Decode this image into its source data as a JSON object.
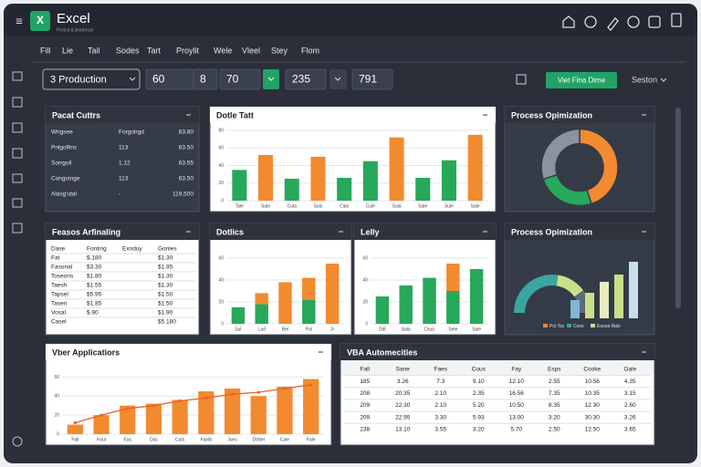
{
  "app": {
    "logo": "X",
    "title": "Excel",
    "subtitle": "Protcit & Andresat"
  },
  "menu": [
    "Fill",
    "Lie",
    "Tail",
    "Sodes",
    "Tart",
    "Proylit",
    "Wele",
    "Vleel",
    "Stey",
    "Flom"
  ],
  "toolbar": {
    "dropdown": "3 Production",
    "fields": [
      "60",
      "8",
      "70",
      "235",
      "791"
    ],
    "button": "Viet Fina Dime",
    "link": "Seston"
  },
  "tables": [
    {
      "title": "Pacat Cuttrs",
      "rows": [
        [
          "Wrigsee",
          "Forgolrgd",
          "63.80"
        ],
        [
          "Pnlgolfins",
          "113",
          "63.50"
        ],
        [
          "Sorrgoll",
          "1.12",
          "63.55"
        ],
        [
          "Congoinge",
          "113",
          "63.50"
        ],
        [
          "Alasg'utal",
          "-",
          "119,500"
        ]
      ]
    },
    {
      "title": "Feasos Arfinaling",
      "header": [
        "Dase",
        "Fonting",
        "Exnduy",
        "Gonles"
      ],
      "rows": [
        [
          "Fat",
          "$.180",
          null,
          "$1.30"
        ],
        [
          "Fasonal",
          "$3.30",
          null,
          "$1.95"
        ],
        [
          "Toseons",
          "$1.80",
          null,
          "$1.30"
        ],
        [
          "Taesh",
          "$1.55",
          null,
          "$1.30"
        ],
        [
          "Tapsel",
          "$5.95",
          null,
          "$1.50"
        ],
        [
          "Tasen",
          "$1.85",
          null,
          "$1.50"
        ],
        [
          "Vosal",
          "$.90",
          null,
          "$1.90"
        ],
        [
          "Casel",
          null,
          null,
          "$5.180"
        ]
      ]
    },
    {
      "title": "VBA Automecities",
      "header": [
        "Fall",
        "Sane",
        "Faes",
        "Cous",
        "Fay",
        "Esps",
        "Cooke",
        "Gale"
      ],
      "rows": [
        [
          "185",
          "3.26",
          "7.3",
          "9.10",
          "12.10",
          "2.55",
          "10.56",
          "4.35"
        ],
        [
          "208",
          "20.35",
          "2.10",
          "2.35",
          "16.56",
          "7.35",
          "10.35",
          "3.15"
        ],
        [
          "209",
          "22.30",
          "2.10",
          "5.20",
          "10.50",
          "8.35",
          "12.30",
          "2.60"
        ],
        [
          "209",
          "22.95",
          "3.30",
          "5.93",
          "13.00",
          "3.20",
          "30.30",
          "3.26"
        ],
        [
          "238",
          "13.10",
          "3.55",
          "3.20",
          "5.70",
          "2.50",
          "12.50",
          "3.65"
        ]
      ]
    }
  ],
  "chart_data": [
    {
      "type": "bar",
      "title": "Dotle Tatt",
      "categories": [
        "Tale",
        "Sulo",
        "Cula",
        "Suls",
        "Calo",
        "Cule",
        "Sula",
        "Sale",
        "Sule",
        "Sale"
      ],
      "values": [
        35,
        52,
        25,
        50,
        26,
        45,
        72,
        26,
        46,
        75
      ],
      "colors": [
        "#27a85a",
        "#f28a30",
        "#27a85a",
        "#f28a30",
        "#27a85a",
        "#27a85a",
        "#f28a30",
        "#27a85a",
        "#27a85a",
        "#f28a30"
      ],
      "ylim": [
        0,
        80
      ],
      "yticks": [
        0,
        20,
        40,
        60,
        80
      ]
    },
    {
      "type": "donut",
      "title": "Process Opimization",
      "values": [
        45,
        25,
        30
      ],
      "colors": [
        "#f28a30",
        "#27a85a",
        "#8a939f"
      ]
    },
    {
      "type": "bar",
      "title": "Dotlics",
      "categories": [
        "Sul",
        "Lad",
        "Bel",
        "Pal",
        "Jr"
      ],
      "series": [
        {
          "color": "#27a85a",
          "values": [
            15,
            18,
            null,
            22,
            null
          ]
        },
        {
          "color": "#f28a30",
          "values": [
            null,
            10,
            38,
            20,
            55
          ]
        }
      ],
      "ylim": [
        0,
        70
      ],
      "yticks": [
        0,
        20,
        40,
        60
      ]
    },
    {
      "type": "bar",
      "title": "Lelly",
      "categories": [
        "Ddt",
        "Sala",
        "Drua",
        "Sele",
        "Sale"
      ],
      "series": [
        {
          "color": "#27a85a",
          "values": [
            25,
            35,
            42,
            30,
            50
          ]
        },
        {
          "color": "#f28a30",
          "values": [
            null,
            null,
            null,
            25,
            null
          ]
        }
      ],
      "ylim": [
        0,
        70
      ],
      "yticks": [
        0,
        20,
        40,
        60
      ]
    },
    {
      "type": "radial",
      "title": "Process Opimization",
      "values": [
        55,
        25,
        20
      ],
      "colors": [
        "#3aa6a0",
        "#c8e08a",
        "#5f6b7a"
      ],
      "bars": [
        20,
        28,
        40,
        48,
        62
      ],
      "bar_colors": [
        "#7fb8d8",
        "#c8e08a",
        "#e8ecc0",
        "#c8e08a",
        "#c9ddee"
      ],
      "ylim": [
        0,
        70
      ],
      "legend": [
        {
          "name": "Pct Tss",
          "color": "#f28a30"
        },
        {
          "name": "Cons",
          "color": "#3aa6a0"
        },
        {
          "name": "Eoosa Rals",
          "color": "#c8e08a"
        }
      ]
    },
    {
      "type": "combo",
      "title": "Vber Applicatiors",
      "categories": [
        "Fall",
        "Foul",
        "Eas",
        "Das",
        "Cuts",
        "Fanib",
        "Jues",
        "Dtritel",
        "Cale",
        "Fale"
      ],
      "series": [
        {
          "color": "#f28a30",
          "values": [
            10,
            20,
            30,
            32,
            36,
            45,
            48,
            40,
            50,
            58
          ]
        },
        {
          "color": "#e8632a",
          "values": [
            12,
            20,
            27,
            30,
            35,
            38,
            42,
            44,
            48,
            52
          ]
        }
      ],
      "ylim": [
        0,
        70
      ],
      "yticks": [
        0,
        20,
        40,
        60
      ]
    }
  ]
}
